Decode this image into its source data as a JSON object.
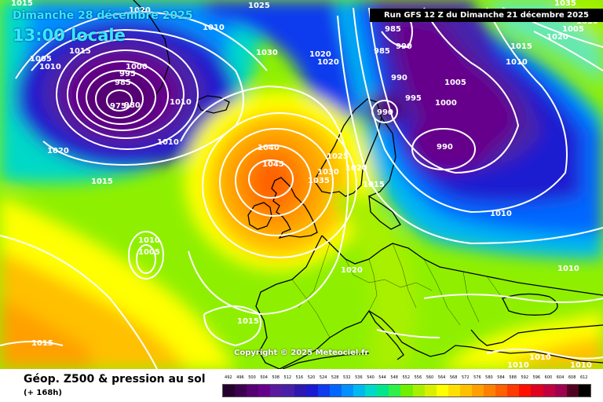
{
  "map": {
    "date_title": "Dimanche 28 décembre 2025",
    "local_time": "13:00 locale",
    "run_banner": "Run GFS 12 Z du Dimanche 21 décembre 2025",
    "copyright": "Copyright © 2025 Meteociel.fr",
    "isobar_labels": [
      "1015",
      "1025",
      "1035",
      "1020",
      "1010",
      "1015",
      "1005",
      "1010",
      "1000",
      "995",
      "985",
      "975",
      "980",
      "1030",
      "1020",
      "1020",
      "985",
      "990",
      "985",
      "990",
      "995",
      "1005",
      "1000",
      "1015",
      "1010",
      "1020",
      "1005",
      "1010",
      "990",
      "990",
      "1040",
      "1045",
      "1025",
      "1020",
      "1030",
      "1035",
      "1015",
      "1010",
      "1020",
      "1015",
      "1010",
      "1005",
      "1015",
      "1010",
      "1015",
      "1010",
      "1010",
      "1010",
      "1020",
      "1010",
      "1010"
    ]
  },
  "footer": {
    "title": "Géop. Z500 & pression au sol",
    "subtitle": "(+ 168h)"
  },
  "colorbar": {
    "values": [
      "492",
      "496",
      "500",
      "504",
      "508",
      "512",
      "516",
      "520",
      "524",
      "528",
      "532",
      "536",
      "540",
      "544",
      "548",
      "552",
      "556",
      "560",
      "564",
      "568",
      "572",
      "576",
      "580",
      "584",
      "588",
      "592",
      "596",
      "600",
      "604",
      "608",
      "612"
    ],
    "colors": [
      "#26002f",
      "#3d0050",
      "#550073",
      "#66008c",
      "#5a1aa0",
      "#4820a8",
      "#2d18b0",
      "#1a1ad0",
      "#0f3aee",
      "#0066ff",
      "#0090ff",
      "#00b8f0",
      "#00d8c8",
      "#00e68c",
      "#2ef04a",
      "#6ef000",
      "#a8f000",
      "#d8f000",
      "#ffff00",
      "#ffe000",
      "#ffc000",
      "#ffa000",
      "#ff8000",
      "#ff6000",
      "#ff3a00",
      "#ff1000",
      "#e00020",
      "#c00040",
      "#a00050",
      "#500020",
      "#000000"
    ]
  }
}
